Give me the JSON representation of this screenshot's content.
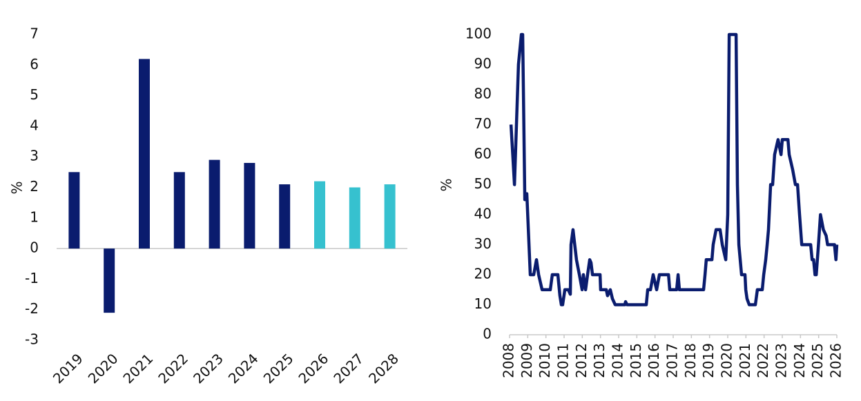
{
  "chart_data": [
    {
      "type": "bar",
      "ylabel": "%",
      "categories": [
        "2019",
        "2020",
        "2021",
        "2022",
        "2023",
        "2024",
        "2025",
        "2026",
        "2027",
        "2028"
      ],
      "values": [
        2.5,
        -2.1,
        6.2,
        2.5,
        2.9,
        2.8,
        2.1,
        2.2,
        2.0,
        2.1
      ],
      "colors": [
        "#0a1c6e",
        "#0a1c6e",
        "#0a1c6e",
        "#0a1c6e",
        "#0a1c6e",
        "#0a1c6e",
        "#0a1c6e",
        "#36c1cf",
        "#36c1cf",
        "#36c1cf"
      ],
      "ylim": [
        -3,
        7
      ],
      "yticks": [
        -3,
        -2,
        -1,
        0,
        1,
        2,
        3,
        4,
        5,
        6,
        7
      ]
    },
    {
      "type": "line",
      "ylabel": "%",
      "color": "#0a1c6e",
      "x": [
        2008.08,
        2008.27,
        2008.49,
        2008.65,
        2008.72,
        2008.84,
        2008.95,
        2009.14,
        2009.33,
        2009.48,
        2009.6,
        2009.79,
        2010.24,
        2010.35,
        2010.66,
        2010.77,
        2010.85,
        2010.92,
        2011.04,
        2011.23,
        2011.34,
        2011.38,
        2011.49,
        2011.68,
        2011.84,
        2011.99,
        2012.06,
        2012.18,
        2012.29,
        2012.41,
        2012.48,
        2012.56,
        2012.98,
        2013.01,
        2013.32,
        2013.39,
        2013.54,
        2013.66,
        2013.81,
        2014.34,
        2014.38,
        2014.46,
        2015.52,
        2015.6,
        2015.75,
        2015.9,
        2016.09,
        2016.24,
        2016.74,
        2016.81,
        2017.19,
        2017.27,
        2017.34,
        2018.67,
        2018.75,
        2018.82,
        2019.13,
        2019.2,
        2019.36,
        2019.58,
        2019.7,
        2019.89,
        2020.0,
        2020.08,
        2020.46,
        2020.53,
        2020.61,
        2020.76,
        2020.95,
        2020.99,
        2021.06,
        2021.18,
        2021.52,
        2021.63,
        2021.9,
        2021.98,
        2022.09,
        2022.17,
        2022.24,
        2022.36,
        2022.47,
        2022.58,
        2022.77,
        2022.93,
        2023.0,
        2023.31,
        2023.38,
        2023.57,
        2023.72,
        2023.84,
        2023.95,
        2024.07,
        2024.56,
        2024.64,
        2024.72,
        2024.8,
        2024.87,
        2024.99,
        2025.1,
        2025.26,
        2025.41,
        2025.49,
        2025.87,
        2025.95,
        2026.0
      ],
      "values": [
        70,
        50,
        90,
        100,
        100,
        45,
        47,
        20,
        20,
        25,
        20,
        15,
        15,
        20,
        20,
        13,
        10,
        10,
        15,
        15,
        13.5,
        30,
        35,
        25,
        20,
        15,
        20,
        15,
        20,
        25,
        24,
        20,
        20,
        15,
        15,
        13,
        15,
        12,
        10,
        10,
        11,
        10,
        10,
        15,
        15,
        20,
        15,
        20,
        20,
        15,
        15,
        20,
        15,
        15,
        20,
        25,
        25,
        30,
        35,
        35,
        30,
        25,
        40,
        100,
        100,
        50,
        30,
        20,
        20,
        15,
        12,
        10,
        10,
        15,
        15,
        20,
        25,
        30,
        35,
        50,
        50,
        60,
        65,
        60,
        65,
        65,
        60,
        55,
        50,
        50,
        40,
        30,
        30,
        25,
        25,
        20,
        20,
        30,
        40,
        35,
        33,
        30,
        30,
        25,
        30
      ],
      "xlim": [
        2008,
        2026
      ],
      "xticks": [
        2008,
        2009,
        2010,
        2011,
        2012,
        2013,
        2014,
        2015,
        2016,
        2017,
        2018,
        2019,
        2020,
        2021,
        2022,
        2023,
        2024,
        2025,
        2026
      ],
      "ylim": [
        0,
        100
      ],
      "yticks": [
        0,
        10,
        20,
        30,
        40,
        50,
        60,
        70,
        80,
        90,
        100
      ]
    }
  ]
}
